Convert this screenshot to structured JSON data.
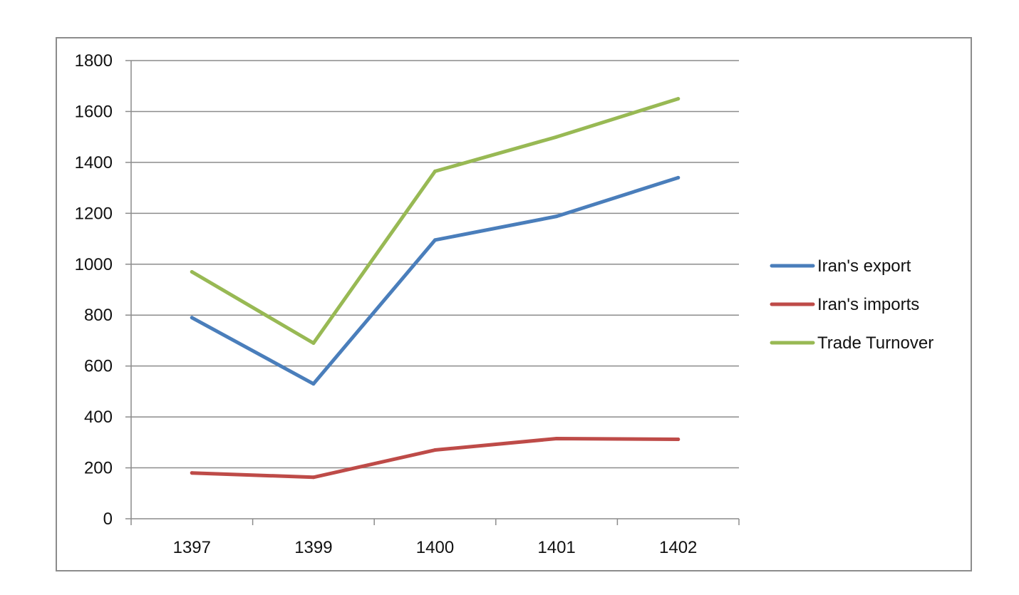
{
  "chart_data": {
    "type": "line",
    "title": "",
    "xlabel": "",
    "ylabel": "",
    "categories": [
      "1397",
      "1399",
      "1400",
      "1401",
      "1402"
    ],
    "ylim": [
      0,
      1800
    ],
    "yticks": [
      0,
      200,
      400,
      600,
      800,
      1000,
      1200,
      1400,
      1600,
      1800
    ],
    "grid": true,
    "legend_position": "right",
    "series": [
      {
        "name": "Iran's export",
        "color": "#4a7ebb",
        "values": [
          790,
          530,
          1095,
          1188,
          1340
        ]
      },
      {
        "name": "Iran's imports",
        "color": "#be4b48",
        "values": [
          180,
          163,
          270,
          315,
          312
        ]
      },
      {
        "name": "Trade Turnover",
        "color": "#98b954",
        "values": [
          970,
          690,
          1365,
          1500,
          1650
        ]
      }
    ]
  }
}
